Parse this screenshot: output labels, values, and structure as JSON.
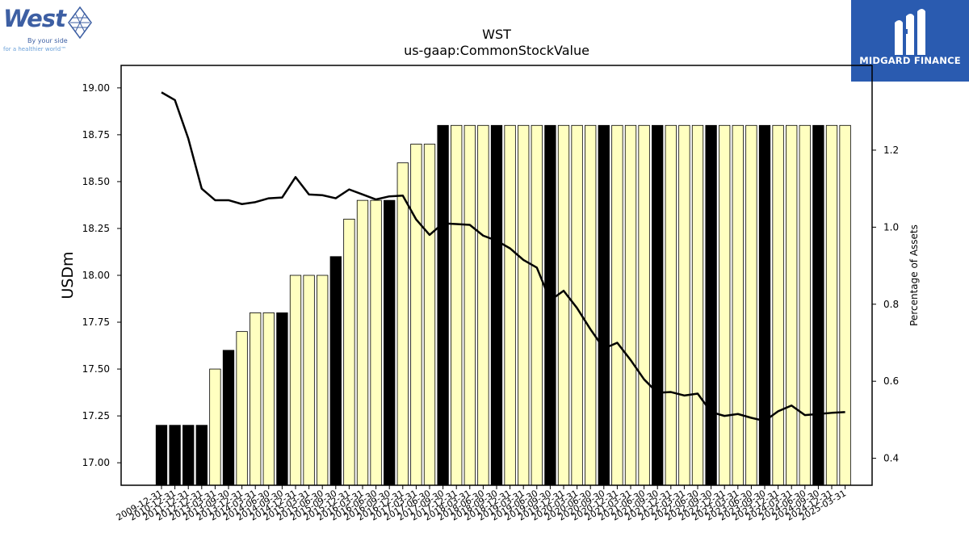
{
  "branding": {
    "company_logo": {
      "word": "West",
      "tagline": "By your side",
      "tagline2": "for a healthier world™"
    },
    "publisher_logo": {
      "text": "MIDGARD FINANCE"
    }
  },
  "colors": {
    "bar_normal": "#ffffc0",
    "bar_highlight": "#000000",
    "line": "#000000"
  },
  "chart_data": {
    "type": "bar",
    "title": "WST",
    "subtitle": "us-gaap:CommonStockValue",
    "ylabel": "USDm",
    "y2label": "Percentage of Assets",
    "ylim": [
      16.88,
      19.12
    ],
    "y2lim": [
      0.33,
      1.42
    ],
    "yticks": [
      "17.00",
      "17.25",
      "17.50",
      "17.75",
      "18.00",
      "18.25",
      "18.50",
      "18.75",
      "19.00"
    ],
    "y2ticks": [
      "0.4",
      "0.6",
      "0.8",
      "1.0",
      "1.2"
    ],
    "categories": [
      "2009-12-31",
      "2010-12-31",
      "2011-12-31",
      "2012-12-31",
      "2013-03-31",
      "2013-09-30",
      "2013-12-31",
      "2014-03-31",
      "2014-06-30",
      "2014-09-30",
      "2014-12-31",
      "2015-03-31",
      "2015-06-30",
      "2015-09-30",
      "2015-12-31",
      "2016-03-31",
      "2016-06-30",
      "2016-09-30",
      "2016-12-31",
      "2017-03-31",
      "2017-06-30",
      "2017-09-30",
      "2017-12-31",
      "2018-03-31",
      "2018-06-30",
      "2018-09-30",
      "2018-12-31",
      "2019-03-31",
      "2019-06-30",
      "2019-09-30",
      "2019-12-31",
      "2020-03-31",
      "2020-06-30",
      "2020-09-30",
      "2020-12-31",
      "2021-03-31",
      "2021-06-30",
      "2021-09-30",
      "2021-12-31",
      "2022-03-31",
      "2022-06-30",
      "2022-09-30",
      "2022-12-31",
      "2023-03-31",
      "2023-06-30",
      "2023-09-30",
      "2023-12-31",
      "2024-03-31",
      "2024-06-30",
      "2024-09-30",
      "2024-12-31",
      "2025-03-31"
    ],
    "values": [
      17.2,
      17.2,
      17.2,
      17.2,
      17.5,
      17.6,
      17.7,
      17.8,
      17.8,
      17.8,
      18.0,
      18.0,
      18.0,
      18.1,
      18.3,
      18.4,
      18.4,
      18.4,
      18.6,
      18.7,
      18.7,
      18.8,
      18.8,
      18.8,
      18.8,
      18.8,
      18.8,
      18.8,
      18.8,
      18.8,
      18.8,
      18.8,
      18.8,
      18.8,
      18.8,
      18.8,
      18.8,
      18.8,
      18.8,
      18.8,
      18.8,
      18.8,
      18.8,
      18.8,
      18.8,
      18.8,
      18.8,
      18.8,
      18.8,
      18.8,
      18.8,
      18.8
    ],
    "highlight": [
      true,
      true,
      true,
      true,
      false,
      true,
      false,
      false,
      false,
      true,
      false,
      false,
      false,
      true,
      false,
      false,
      false,
      true,
      false,
      false,
      false,
      true,
      false,
      false,
      false,
      true,
      false,
      false,
      false,
      true,
      false,
      false,
      false,
      true,
      false,
      false,
      false,
      true,
      false,
      false,
      false,
      true,
      false,
      false,
      false,
      true,
      false,
      false,
      false,
      true,
      false,
      false
    ],
    "percentage_of_assets": [
      1.35,
      1.33,
      1.23,
      1.1,
      1.07,
      1.07,
      1.06,
      1.065,
      1.075,
      1.077,
      1.13,
      1.085,
      1.083,
      1.075,
      1.098,
      1.085,
      1.072,
      1.08,
      1.082,
      1.02,
      0.98,
      1.01,
      1.008,
      1.006,
      0.978,
      0.965,
      0.945,
      0.915,
      0.895,
      0.81,
      0.835,
      0.79,
      0.735,
      0.685,
      0.7,
      0.655,
      0.605,
      0.57,
      0.572,
      0.563,
      0.568,
      0.52,
      0.51,
      0.515,
      0.505,
      0.497,
      0.522,
      0.537,
      0.512,
      0.515,
      0.518,
      0.52
    ]
  }
}
